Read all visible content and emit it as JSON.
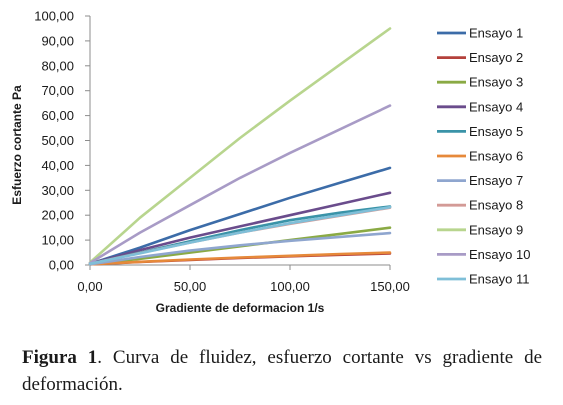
{
  "chart_data": {
    "type": "line",
    "title": "",
    "xlabel": "Gradiente de deformacion 1/s",
    "ylabel": "Esfuerzo cortante Pa",
    "xlim": [
      0,
      150
    ],
    "ylim": [
      0,
      100
    ],
    "xticks": [
      "0,00",
      "50,00",
      "100,00",
      "150,00"
    ],
    "yticks": [
      "0,00",
      "10,00",
      "20,00",
      "30,00",
      "40,00",
      "50,00",
      "60,00",
      "70,00",
      "80,00",
      "90,00",
      "100,00"
    ],
    "grid": false,
    "legend_position": "right",
    "x": [
      0,
      25,
      50,
      75,
      100,
      125,
      150
    ],
    "series": [
      {
        "name": "Ensayo 1",
        "color": "#3C6CA8",
        "values": [
          0.5,
          7,
          14,
          20.5,
          27,
          33,
          39
        ]
      },
      {
        "name": "Ensayo 2",
        "color": "#B4413C",
        "values": [
          0.3,
          1.2,
          2.0,
          2.8,
          3.5,
          4.1,
          4.6
        ]
      },
      {
        "name": "Ensayo 3",
        "color": "#8AAA44",
        "values": [
          0.3,
          2.5,
          5,
          7.5,
          10,
          12.5,
          15
        ]
      },
      {
        "name": "Ensayo 4",
        "color": "#6A4C8C",
        "values": [
          0.5,
          6,
          11,
          15.5,
          20,
          24.5,
          29
        ]
      },
      {
        "name": "Ensayo 5",
        "color": "#3A93A8",
        "values": [
          0.5,
          5,
          9.5,
          14,
          18,
          21,
          23.5
        ]
      },
      {
        "name": "Ensayo 6",
        "color": "#E6893A",
        "values": [
          0.3,
          1.3,
          2.2,
          3.0,
          3.7,
          4.4,
          5.0
        ]
      },
      {
        "name": "Ensayo 7",
        "color": "#8FA6CF",
        "values": [
          0.3,
          3.2,
          5.8,
          7.9,
          9.7,
          11.3,
          12.8
        ]
      },
      {
        "name": "Ensayo 8",
        "color": "#D39A96",
        "values": [
          0.5,
          4.8,
          9,
          13,
          16.5,
          19.8,
          23
        ]
      },
      {
        "name": "Ensayo 9",
        "color": "#B8D58E",
        "values": [
          1,
          19,
          35,
          51,
          66,
          80.5,
          95
        ]
      },
      {
        "name": "Ensayo 10",
        "color": "#A89BC6",
        "values": [
          0.8,
          13,
          24,
          35,
          45,
          54.5,
          64
        ]
      },
      {
        "name": "Ensayo 11",
        "color": "#7FBFD8",
        "values": [
          0.5,
          4.7,
          9,
          13,
          16.8,
          20,
          23.2
        ]
      }
    ]
  },
  "caption": {
    "label": "Figura 1",
    "text": ". Curva de fluidez, esfuerzo cortante vs gradiente de deformación."
  }
}
